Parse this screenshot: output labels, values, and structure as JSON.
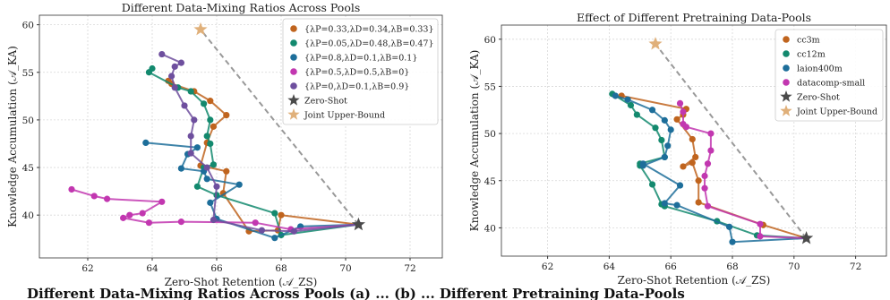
{
  "caption_fragment": "Different Data-Mixing Ratios Across Pools (a) ... (b) ... Different Pretraining Data-Pools",
  "chart_data": [
    {
      "type": "line",
      "title": "Different Data-Mixing Ratios Across Pools",
      "xlabel": "Zero-Shot Retention (𝒜_ZS)",
      "ylabel": "Knowledge Accumulation (𝒜_KA)",
      "xlim": [
        60.5,
        73
      ],
      "ylim": [
        35.5,
        61
      ],
      "xticks": [
        62,
        64,
        66,
        68,
        70,
        72
      ],
      "yticks": [
        40,
        45,
        50,
        55,
        60
      ],
      "grid": true,
      "legend_position": "top-right",
      "series": [
        {
          "name": "{λP=0.33,λD=0.34,λB=0.33}",
          "color": "#c0641e",
          "points": [
            [
              70.4,
              39.0
            ],
            [
              68.0,
              40.0
            ],
            [
              67.9,
              38.4
            ],
            [
              67.0,
              38.3
            ],
            [
              66.2,
              42.3
            ],
            [
              66.3,
              44.6
            ],
            [
              65.5,
              45.2
            ],
            [
              65.7,
              47.6
            ],
            [
              65.9,
              49.3
            ],
            [
              66.3,
              50.5
            ],
            [
              65.8,
              52.0
            ],
            [
              65.3,
              53.0
            ],
            [
              64.6,
              53.8
            ],
            [
              64.5,
              54.1
            ]
          ]
        },
        {
          "name": "{λP=0.05,λD=0.48,λB=0.47}",
          "color": "#13896e",
          "points": [
            [
              70.4,
              39.0
            ],
            [
              68.0,
              37.9
            ],
            [
              67.8,
              40.2
            ],
            [
              66.0,
              42.1
            ],
            [
              65.4,
              43.0
            ],
            [
              65.6,
              45.0
            ],
            [
              65.9,
              45.3
            ],
            [
              65.8,
              47.5
            ],
            [
              65.7,
              48.3
            ],
            [
              65.8,
              50.0
            ],
            [
              65.6,
              51.7
            ],
            [
              65.2,
              53.0
            ],
            [
              64.8,
              53.4
            ],
            [
              63.9,
              55.0
            ],
            [
              64.0,
              55.4
            ]
          ]
        },
        {
          "name": "{λP=0.8,λD=0.1,λB=0.1}",
          "color": "#1d6e9a",
          "points": [
            [
              70.4,
              39.0
            ],
            [
              68.6,
              38.8
            ],
            [
              67.8,
              37.6
            ],
            [
              66.0,
              39.6
            ],
            [
              65.8,
              41.3
            ],
            [
              66.7,
              43.2
            ],
            [
              65.7,
              43.8
            ],
            [
              65.6,
              44.6
            ],
            [
              64.9,
              44.9
            ],
            [
              65.1,
              46.4
            ],
            [
              65.4,
              47.1
            ],
            [
              63.8,
              47.6
            ]
          ]
        },
        {
          "name": "{λP=0.5,λD=0.5,λB=0}",
          "color": "#c237b0",
          "points": [
            [
              70.4,
              39.0
            ],
            [
              68.3,
              38.5
            ],
            [
              67.2,
              39.2
            ],
            [
              64.9,
              39.3
            ],
            [
              63.9,
              39.2
            ],
            [
              63.1,
              39.7
            ],
            [
              63.3,
              40.0
            ],
            [
              63.7,
              40.2
            ],
            [
              64.3,
              41.4
            ],
            [
              62.6,
              41.7
            ],
            [
              62.2,
              42.0
            ],
            [
              61.5,
              42.7
            ]
          ]
        },
        {
          "name": "{λP=0,λD=0.1,λB=0.9}",
          "color": "#6e4f9e",
          "points": [
            [
              70.4,
              39.0
            ],
            [
              68.4,
              38.3
            ],
            [
              67.4,
              38.4
            ],
            [
              65.9,
              39.5
            ],
            [
              66.0,
              43.0
            ],
            [
              65.7,
              45.0
            ],
            [
              65.2,
              46.5
            ],
            [
              65.2,
              48.3
            ],
            [
              65.3,
              50.0
            ],
            [
              65.0,
              51.5
            ],
            [
              64.7,
              53.4
            ],
            [
              64.6,
              54.6
            ],
            [
              64.7,
              55.6
            ],
            [
              64.9,
              56.0
            ],
            [
              64.3,
              56.9
            ]
          ]
        }
      ],
      "zero_shot": {
        "name": "Zero-Shot",
        "x": 70.4,
        "y": 39.0,
        "color": "#4a4a4a"
      },
      "upper_bound": {
        "name": "Joint Upper-Bound",
        "x": 65.5,
        "y": 59.5,
        "color": "#e0b07a"
      }
    },
    {
      "type": "line",
      "title": "Effect of Different Pretraining Data-Pools",
      "xlabel": "Zero-Shot Retention (𝒜_ZS)",
      "ylabel": "Knowledge Accumulation (𝒜_KA)",
      "xlim": [
        60.5,
        73
      ],
      "ylim": [
        37.0,
        61.5
      ],
      "xticks": [
        62,
        64,
        66,
        68,
        70,
        72
      ],
      "yticks": [
        40,
        45,
        50,
        55,
        60
      ],
      "grid": true,
      "legend_position": "top-right",
      "series": [
        {
          "name": "cc3m",
          "color": "#c0641e",
          "points": [
            [
              70.4,
              38.9
            ],
            [
              69.0,
              40.3
            ],
            [
              66.9,
              42.7
            ],
            [
              66.9,
              45.0
            ],
            [
              66.7,
              46.9
            ],
            [
              66.4,
              46.5
            ],
            [
              66.8,
              47.5
            ],
            [
              66.7,
              49.4
            ],
            [
              66.2,
              51.5
            ],
            [
              66.4,
              52.0
            ],
            [
              66.5,
              52.6
            ],
            [
              64.4,
              54.0
            ]
          ]
        },
        {
          "name": "cc12m",
          "color": "#13896e",
          "points": [
            [
              70.4,
              38.9
            ],
            [
              68.8,
              39.2
            ],
            [
              67.5,
              40.7
            ],
            [
              65.8,
              42.3
            ],
            [
              65.7,
              42.5
            ],
            [
              65.4,
              44.6
            ],
            [
              65.0,
              46.6
            ],
            [
              65.0,
              46.8
            ],
            [
              65.8,
              47.5
            ],
            [
              65.7,
              49.3
            ],
            [
              65.5,
              50.6
            ],
            [
              64.9,
              52.0
            ],
            [
              64.7,
              53.0
            ],
            [
              64.1,
              54.2
            ]
          ]
        },
        {
          "name": "laion400m",
          "color": "#1d6e9a",
          "points": [
            [
              70.4,
              38.9
            ],
            [
              68.0,
              38.5
            ],
            [
              67.9,
              40.1
            ],
            [
              66.2,
              42.4
            ],
            [
              65.8,
              42.6
            ],
            [
              66.3,
              44.5
            ],
            [
              65.1,
              46.8
            ],
            [
              65.1,
              46.6
            ],
            [
              65.8,
              47.5
            ],
            [
              65.9,
              48.7
            ],
            [
              66.0,
              50.4
            ],
            [
              65.8,
              51.4
            ],
            [
              65.4,
              52.5
            ],
            [
              64.6,
              53.6
            ],
            [
              64.2,
              54.0
            ]
          ]
        },
        {
          "name": "datacomp-small",
          "color": "#c237b0",
          "points": [
            [
              70.4,
              38.9
            ],
            [
              68.9,
              39.1
            ],
            [
              68.9,
              40.4
            ],
            [
              67.2,
              42.3
            ],
            [
              67.1,
              44.2
            ],
            [
              67.1,
              45.5
            ],
            [
              67.2,
              46.8
            ],
            [
              67.3,
              48.2
            ],
            [
              67.3,
              50.0
            ],
            [
              66.5,
              50.7
            ],
            [
              66.4,
              51.0
            ],
            [
              66.4,
              52.3
            ],
            [
              66.3,
              53.2
            ]
          ]
        }
      ],
      "zero_shot": {
        "name": "Zero-Shot",
        "x": 70.4,
        "y": 38.9,
        "color": "#4a4a4a"
      },
      "upper_bound": {
        "name": "Joint Upper-Bound",
        "x": 65.5,
        "y": 59.5,
        "color": "#e0b07a"
      }
    }
  ]
}
